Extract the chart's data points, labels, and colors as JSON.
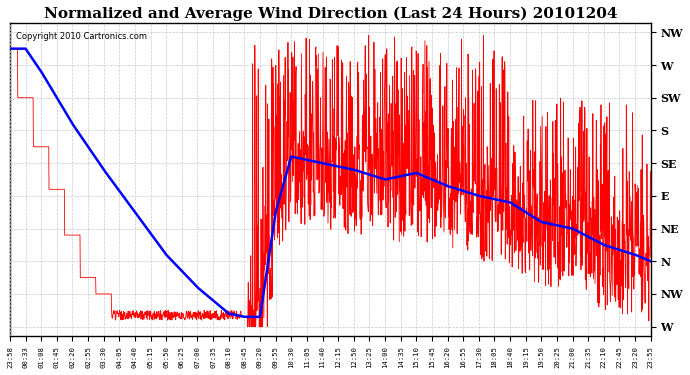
{
  "title": "Normalized and Average Wind Direction (Last 24 Hours) 20101204",
  "copyright": "Copyright 2010 Cartronics.com",
  "ytick_labels": [
    "NW",
    "W",
    "SW",
    "S",
    "SE",
    "E",
    "NE",
    "N",
    "NW",
    "W"
  ],
  "background_color": "#ffffff",
  "grid_color": "#c8c8c8",
  "line_color_red": "#ff0000",
  "line_color_blue": "#0000ff",
  "title_fontsize": 11,
  "xtick_labels": [
    "23:58",
    "00:33",
    "01:08",
    "01:45",
    "02:20",
    "02:55",
    "03:30",
    "04:05",
    "04:40",
    "05:15",
    "05:50",
    "06:25",
    "07:00",
    "07:35",
    "08:10",
    "08:45",
    "09:20",
    "09:55",
    "10:30",
    "11:05",
    "11:40",
    "12:15",
    "12:50",
    "13:25",
    "14:00",
    "14:35",
    "15:10",
    "15:45",
    "16:20",
    "16:55",
    "17:30",
    "18:05",
    "18:40",
    "19:15",
    "19:50",
    "20:25",
    "21:00",
    "21:35",
    "22:10",
    "22:45",
    "23:20",
    "23:55"
  ]
}
